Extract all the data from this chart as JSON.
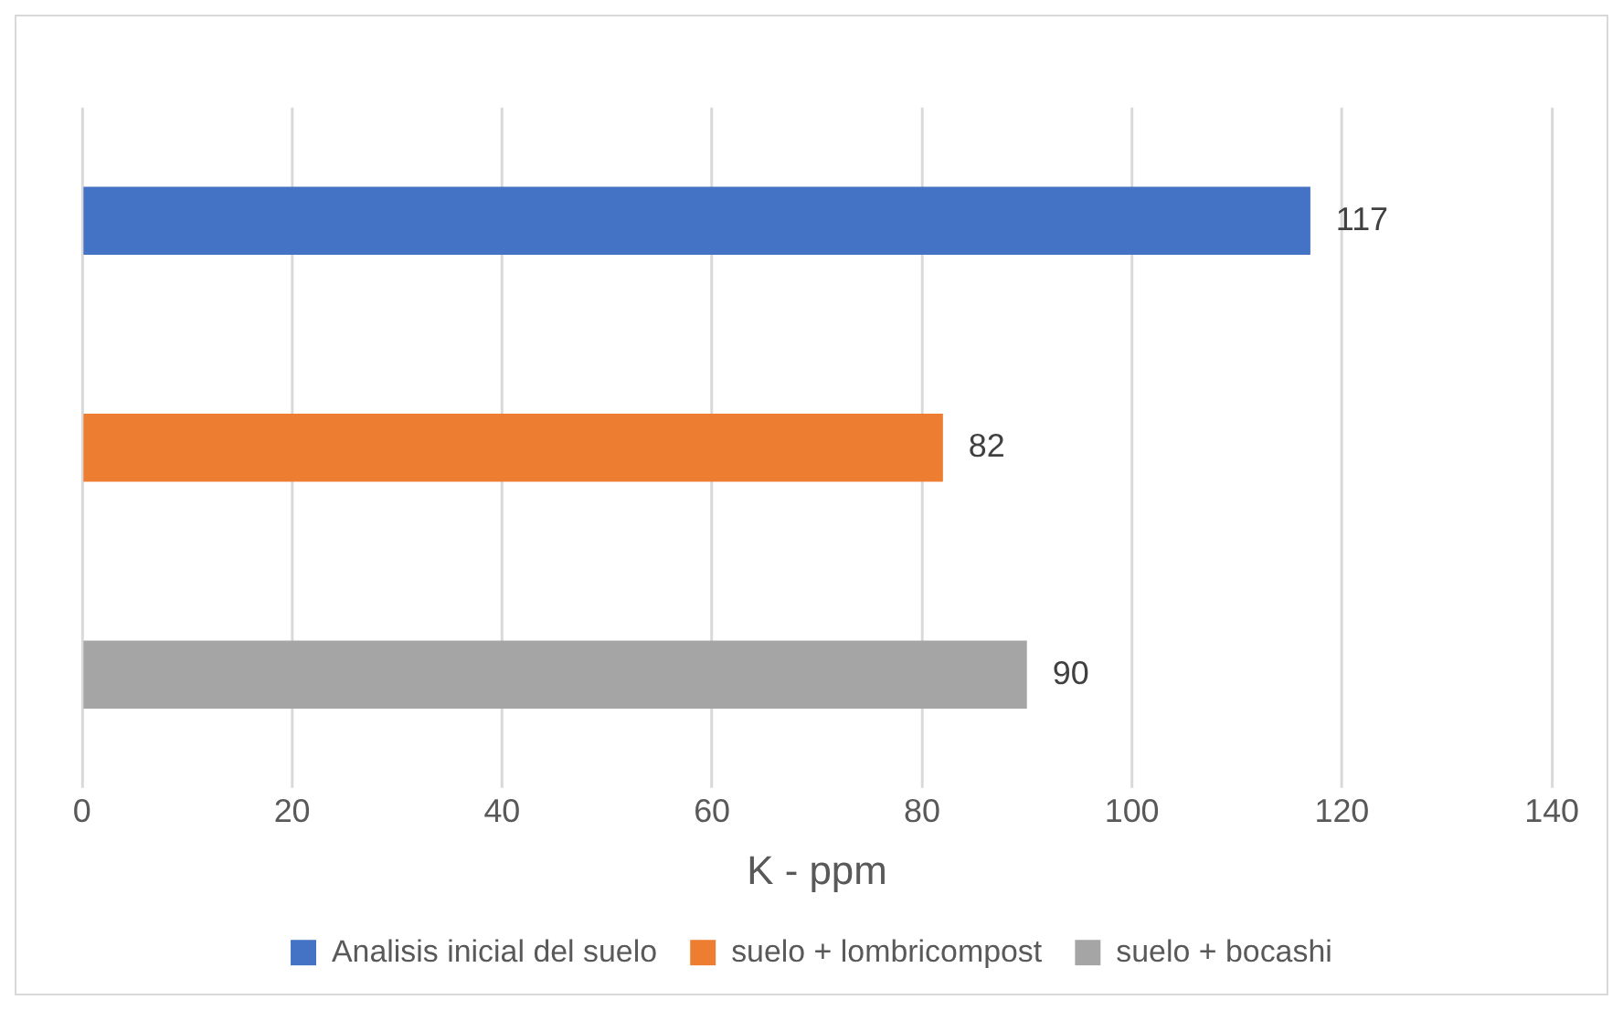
{
  "chart_data": {
    "type": "bar",
    "orientation": "horizontal",
    "categories": [
      null
    ],
    "series": [
      {
        "name": "Analisis inicial del suelo",
        "color": "#4472c4",
        "values": [
          117
        ]
      },
      {
        "name": "suelo + lombricompost",
        "color": "#ed7d31",
        "values": [
          82
        ]
      },
      {
        "name": "suelo + bocashi",
        "color": "#a5a5a5",
        "values": [
          90
        ]
      }
    ],
    "xlabel": "K - ppm",
    "xlim": [
      0,
      140
    ],
    "xticks": [
      0,
      20,
      40,
      60,
      80,
      100,
      120,
      140
    ],
    "grid": "x",
    "legend": "bottom",
    "data_labels": true
  }
}
